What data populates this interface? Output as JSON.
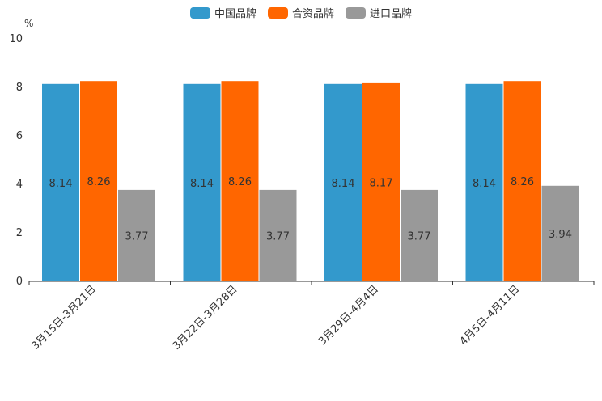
{
  "chart_data": {
    "type": "bar",
    "title": "",
    "ylabel": "%",
    "xlabel": "",
    "ylim": [
      0,
      10
    ],
    "yticks": [
      "0",
      "2",
      "4",
      "6",
      "8",
      "10"
    ],
    "categories": [
      "3月15日-3月21日",
      "3月22日-3月28日",
      "3月29日-4月4日",
      "4月5日-4月11日"
    ],
    "series": [
      {
        "name": "中国品牌",
        "color": "#3399cc",
        "values": [
          8.14,
          8.14,
          8.14,
          8.14
        ],
        "labels": [
          "8.14",
          "8.14",
          "8.14",
          "8.14"
        ]
      },
      {
        "name": "合资品牌",
        "color": "#ff6600",
        "values": [
          8.26,
          8.26,
          8.17,
          8.26
        ],
        "labels": [
          "8.26",
          "8.26",
          "8.17",
          "8.26"
        ]
      },
      {
        "name": "进口品牌",
        "color": "#999999",
        "values": [
          3.77,
          3.77,
          3.77,
          3.94
        ],
        "labels": [
          "3.77",
          "3.77",
          "3.77",
          "3.94"
        ]
      }
    ],
    "legend_position": "top-center",
    "grid": false
  }
}
